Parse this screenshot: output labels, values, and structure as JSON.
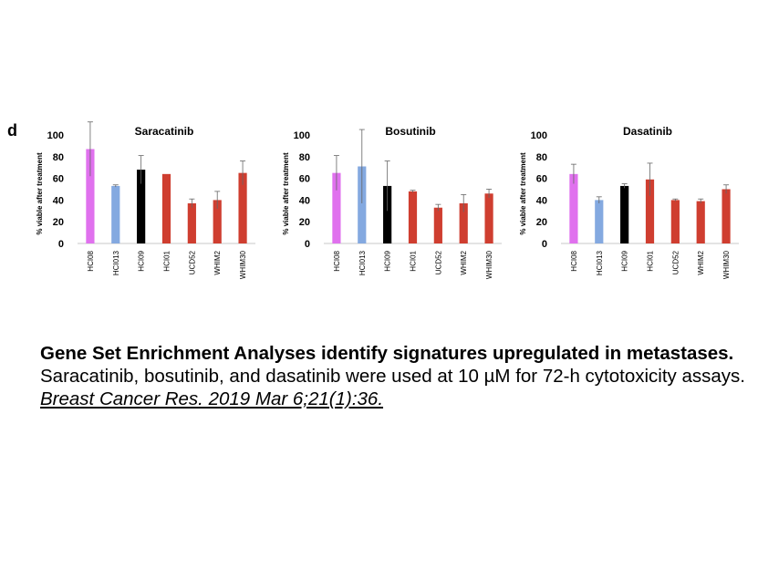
{
  "panel_letter": "d",
  "caption": {
    "title": "Gene Set Enrichment Analyses identify signatures upregulated in metastases.",
    "body": "Saracatinib, bosutinib, and dasatinib were used at 10 µM for 72-h cytotoxicity assays. ",
    "citation": "Breast Cancer Res. 2019 Mar 6;21(1):36."
  },
  "chart_data": [
    {
      "type": "bar",
      "title": "Saracatinib",
      "ylabel": "% viable after treatment",
      "xlabel": "",
      "ylim": [
        0,
        100
      ],
      "yticks": [
        "0",
        "20",
        "40",
        "60",
        "80",
        "100"
      ],
      "categories": [
        "HCI08",
        "HCI013",
        "HCI09",
        "HCI01",
        "UCD52",
        "WHIM2",
        "WHIM30"
      ],
      "values": [
        87,
        53,
        68,
        64,
        37,
        40,
        65
      ],
      "errors": [
        25,
        1,
        13,
        0,
        4,
        8,
        11
      ],
      "colors": [
        "#e071ee",
        "#84a9e0",
        "#000000",
        "#cf3e30",
        "#cf3e30",
        "#cf3e30",
        "#cf3e30"
      ],
      "grid": false
    },
    {
      "type": "bar",
      "title": "Bosutinib",
      "ylabel": "% viable after treatment",
      "xlabel": "",
      "ylim": [
        0,
        100
      ],
      "yticks": [
        "0",
        "20",
        "40",
        "60",
        "80",
        "100"
      ],
      "categories": [
        "HCI08",
        "HCI013",
        "HCI09",
        "HCI01",
        "UCD52",
        "WHIM2",
        "WHIM30"
      ],
      "values": [
        65,
        71,
        53,
        48,
        33,
        37,
        46
      ],
      "errors": [
        16,
        34,
        23,
        1,
        3,
        8,
        4
      ],
      "colors": [
        "#e071ee",
        "#84a9e0",
        "#000000",
        "#cf3e30",
        "#cf3e30",
        "#cf3e30",
        "#cf3e30"
      ],
      "grid": false
    },
    {
      "type": "bar",
      "title": "Dasatinib",
      "ylabel": "% viable after treatment",
      "xlabel": "",
      "ylim": [
        0,
        100
      ],
      "yticks": [
        "0",
        "20",
        "40",
        "60",
        "80",
        "100"
      ],
      "categories": [
        "HCI08",
        "HCI013",
        "HCI09",
        "HCI01",
        "UCD52",
        "WHIM2",
        "WHIM30"
      ],
      "values": [
        64,
        40,
        53,
        59,
        40,
        39,
        50
      ],
      "errors": [
        9,
        3,
        2,
        15,
        1,
        2,
        4
      ],
      "colors": [
        "#e071ee",
        "#84a9e0",
        "#000000",
        "#cf3e30",
        "#cf3e30",
        "#cf3e30",
        "#cf3e30"
      ],
      "grid": false
    }
  ]
}
